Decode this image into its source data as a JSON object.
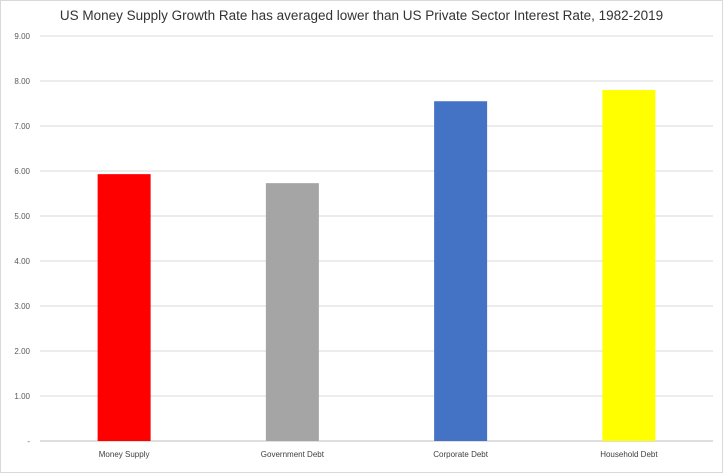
{
  "chart_data": {
    "type": "bar",
    "title": "US Money Supply Growth Rate has averaged lower than US Private Sector Interest Rate, 1982-2019",
    "xlabel": "",
    "ylabel": "",
    "categories": [
      "Money Supply",
      "Government Debt",
      "Corporate Debt",
      "Household Debt"
    ],
    "values": [
      5.93,
      5.73,
      7.55,
      7.8
    ],
    "colors": [
      "#ff0000",
      "#a5a5a5",
      "#4472c4",
      "#ffff00"
    ],
    "ylim": [
      0,
      9
    ],
    "yticks": [
      0,
      1,
      2,
      3,
      4,
      5,
      6,
      7,
      8,
      9
    ],
    "ytick_labels": [
      "-",
      "1.00",
      "2.00",
      "3.00",
      "4.00",
      "5.00",
      "6.00",
      "7.00",
      "8.00",
      "9.00"
    ],
    "grid": true,
    "legend": false
  }
}
